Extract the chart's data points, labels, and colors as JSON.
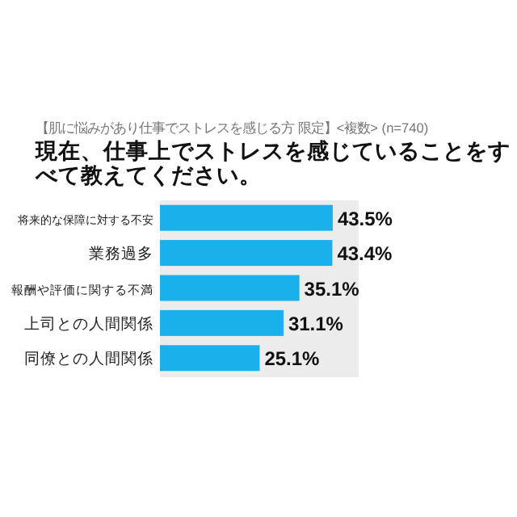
{
  "chart_data": {
    "type": "bar",
    "orientation": "horizontal",
    "subtitle": "【肌に悩みがあり仕事でストレスを感じる方 限定】<複数> (n=740)",
    "title": "現在、仕事上でストレスを感じていることをすべて教えてください。",
    "categories": [
      "将来的な保障に対する不安",
      "業務過多",
      "報酬や評価に関する不満",
      "上司との人間関係",
      "同僚との人間関係"
    ],
    "values": [
      43.5,
      43.4,
      35.1,
      31.1,
      25.1
    ],
    "color": "#1ab0ec",
    "value_labels": [
      "43.5%",
      "43.4%",
      "35.1%",
      "31.1%",
      "25.1%"
    ]
  }
}
